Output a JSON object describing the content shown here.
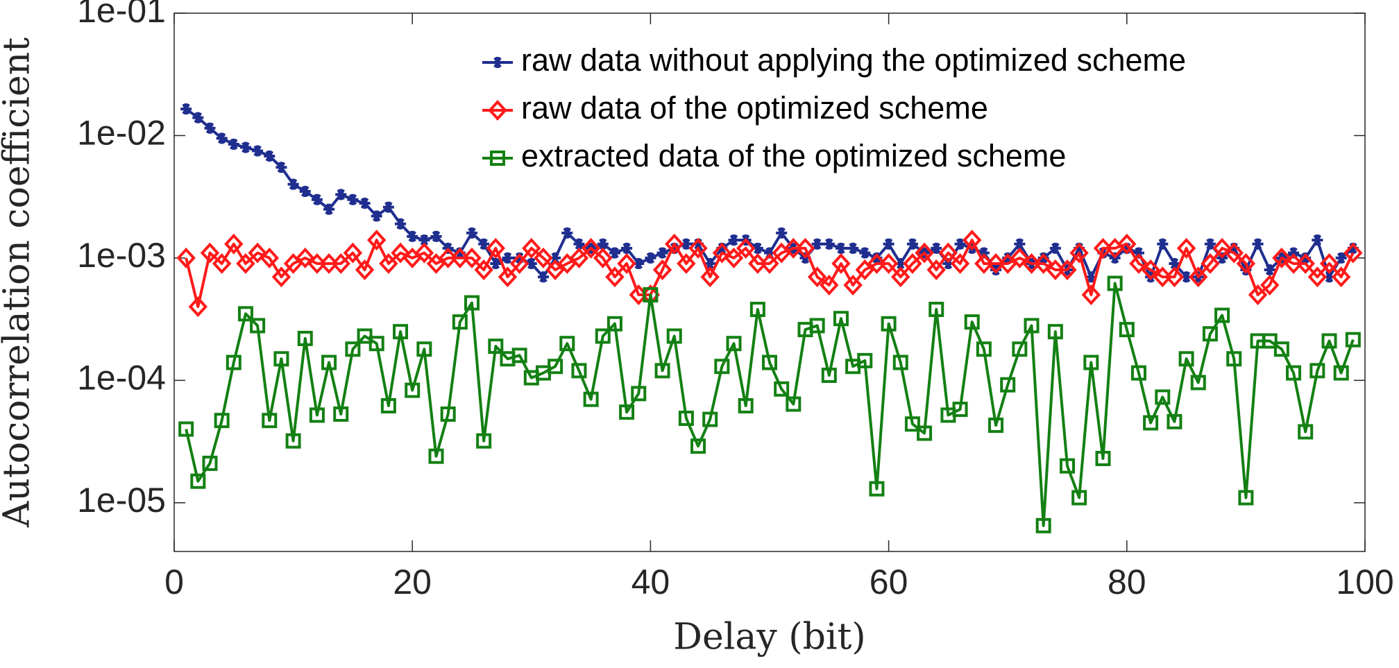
{
  "chart_data": {
    "type": "line",
    "xlabel": "Delay (bit)",
    "ylabel": "Autocorrelation coefficient",
    "xlim": [
      0,
      100
    ],
    "xticks": [
      0,
      20,
      40,
      60,
      80,
      100
    ],
    "ylim": [
      4e-06,
      0.1
    ],
    "log_y": true,
    "grid": false,
    "legend": "upper right",
    "yticks": [
      {
        "value": 1e-05,
        "label": "1e-05"
      },
      {
        "value": 0.0001,
        "label": "1e-04"
      },
      {
        "value": 0.001,
        "label": "1e-03"
      },
      {
        "value": 0.01,
        "label": "1e-02"
      },
      {
        "value": 0.1,
        "label": "1e-01"
      }
    ],
    "x": [
      1,
      2,
      3,
      4,
      5,
      6,
      7,
      8,
      9,
      10,
      11,
      12,
      13,
      14,
      15,
      16,
      17,
      18,
      19,
      20,
      21,
      22,
      23,
      24,
      25,
      26,
      27,
      28,
      29,
      30,
      31,
      32,
      33,
      34,
      35,
      36,
      37,
      38,
      39,
      40,
      41,
      42,
      43,
      44,
      45,
      46,
      47,
      48,
      49,
      50,
      51,
      52,
      53,
      54,
      55,
      56,
      57,
      58,
      59,
      60,
      61,
      62,
      63,
      64,
      65,
      66,
      67,
      68,
      69,
      70,
      71,
      72,
      73,
      74,
      75,
      76,
      77,
      78,
      79,
      80,
      81,
      82,
      83,
      84,
      85,
      86,
      87,
      88,
      89,
      90,
      91,
      92,
      93,
      94,
      95,
      96,
      97,
      98,
      99
    ],
    "series": [
      {
        "name": "raw data without applying the optimized scheme",
        "color": "#1f2e8f",
        "marker": "asterisk",
        "values": [
          0.0165,
          0.014,
          0.0115,
          0.0095,
          0.0085,
          0.008,
          0.0075,
          0.0068,
          0.0055,
          0.004,
          0.0035,
          0.003,
          0.0025,
          0.0033,
          0.003,
          0.0028,
          0.0022,
          0.0026,
          0.0019,
          0.0015,
          0.0014,
          0.0015,
          0.0012,
          0.0011,
          0.0016,
          0.0013,
          0.0009,
          0.001,
          0.001,
          0.0009,
          0.0007,
          0.001,
          0.0016,
          0.0013,
          0.0012,
          0.0013,
          0.0011,
          0.0012,
          0.0009,
          0.001,
          0.0011,
          0.0012,
          0.0013,
          0.0013,
          0.0009,
          0.0012,
          0.0014,
          0.0014,
          0.0012,
          0.0011,
          0.0016,
          0.0012,
          0.001,
          0.0013,
          0.0013,
          0.0012,
          0.0012,
          0.0011,
          0.001,
          0.0013,
          0.0009,
          0.0013,
          0.0011,
          0.0012,
          0.0009,
          0.0013,
          0.0012,
          0.0011,
          0.0008,
          0.001,
          0.0013,
          0.0009,
          0.001,
          0.0012,
          0.0008,
          0.0012,
          0.0007,
          0.0011,
          0.001,
          0.0012,
          0.0011,
          0.0007,
          0.0013,
          0.0009,
          0.0007,
          0.0007,
          0.0013,
          0.001,
          0.0012,
          0.0008,
          0.0013,
          0.0008,
          0.001,
          0.0011,
          0.001,
          0.0014,
          0.0007,
          0.001,
          0.0012
        ]
      },
      {
        "name": "raw data of the optimized scheme",
        "color": "#ff1a1a",
        "marker": "diamond",
        "values": [
          0.001,
          0.0004,
          0.0011,
          0.0009,
          0.0013,
          0.0009,
          0.0011,
          0.001,
          0.0007,
          0.0009,
          0.001,
          0.0009,
          0.0009,
          0.0009,
          0.0011,
          0.0008,
          0.0014,
          0.0009,
          0.0011,
          0.001,
          0.0011,
          0.0009,
          0.001,
          0.001,
          0.001,
          0.0008,
          0.0012,
          0.0007,
          0.0009,
          0.0012,
          0.001,
          0.0008,
          0.0009,
          0.001,
          0.0012,
          0.001,
          0.0007,
          0.0009,
          0.0005,
          0.0005,
          0.0008,
          0.0013,
          0.0009,
          0.0012,
          0.0007,
          0.0011,
          0.001,
          0.0012,
          0.0009,
          0.0009,
          0.0011,
          0.0012,
          0.0012,
          0.0007,
          0.0006,
          0.0009,
          0.0006,
          0.0008,
          0.0009,
          0.0009,
          0.0007,
          0.0009,
          0.0011,
          0.0008,
          0.0011,
          0.0009,
          0.0014,
          0.0009,
          0.0009,
          0.0009,
          0.001,
          0.0009,
          0.0009,
          0.0008,
          0.0008,
          0.0011,
          0.0005,
          0.0012,
          0.0012,
          0.0013,
          0.0009,
          0.0008,
          0.0007,
          0.0007,
          0.0012,
          0.0007,
          0.0009,
          0.0012,
          0.0011,
          0.0009,
          0.0005,
          0.0006,
          0.001,
          0.0009,
          0.0009,
          0.0007,
          0.0009,
          0.0007,
          0.0011
        ]
      },
      {
        "name": "extracted data of the optimized scheme",
        "color": "#138013",
        "marker": "square",
        "values": [
          4e-05,
          1.5e-05,
          2.1e-05,
          4.7e-05,
          0.00014,
          0.00035,
          0.00028,
          4.7e-05,
          0.00015,
          3.2e-05,
          0.00022,
          5.2e-05,
          0.00014,
          5.3e-05,
          0.00018,
          0.00023,
          0.0002,
          6.2e-05,
          0.00025,
          8.3e-05,
          0.00018,
          2.4e-05,
          5.3e-05,
          0.0003,
          0.00043,
          3.2e-05,
          0.00019,
          0.00015,
          0.00016,
          0.000105,
          0.000115,
          0.00013,
          0.0002,
          0.00012,
          7e-05,
          0.00023,
          0.00029,
          5.5e-05,
          7.8e-05,
          0.0005,
          0.00012,
          0.00023,
          4.9e-05,
          2.9e-05,
          4.8e-05,
          0.00013,
          0.0002,
          6.2e-05,
          0.00038,
          0.00014,
          8.5e-05,
          6.4e-05,
          0.00026,
          0.00028,
          0.00011,
          0.00032,
          0.00013,
          0.000145,
          1.3e-05,
          0.00029,
          0.00014,
          4.4e-05,
          3.7e-05,
          0.00038,
          5.2e-05,
          5.8e-05,
          0.0003,
          0.00018,
          4.3e-05,
          9.2e-05,
          0.00018,
          0.00028,
          6.5e-06,
          0.00025,
          2e-05,
          1.1e-05,
          0.00014,
          2.3e-05,
          0.00062,
          0.00026,
          0.000115,
          4.5e-05,
          7.3e-05,
          4.6e-05,
          0.00015,
          9.6e-05,
          0.00024,
          0.00034,
          0.00015,
          1.1e-05,
          0.00021,
          0.00021,
          0.00018,
          0.000115,
          3.8e-05,
          0.00012,
          0.00021,
          0.000115,
          0.000215
        ]
      }
    ]
  }
}
